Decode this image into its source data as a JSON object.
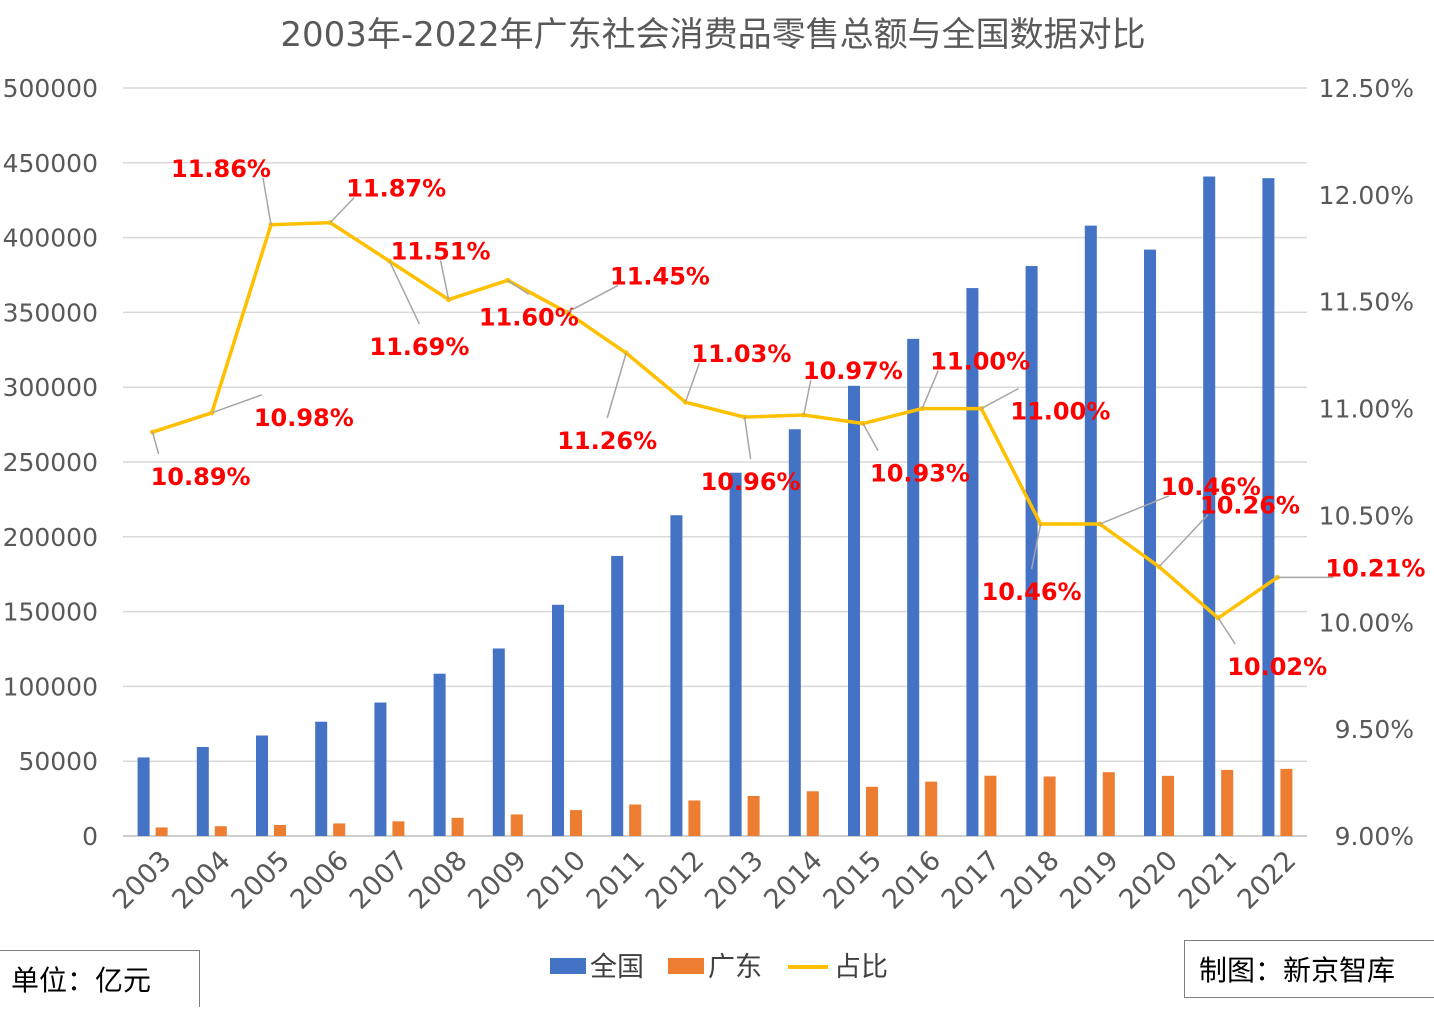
{
  "chart_data": {
    "type": "bar",
    "title": "2003年-2022年广东社会消费品零售总额与全国数据对比",
    "categories": [
      "2003",
      "2004",
      "2005",
      "2006",
      "2007",
      "2008",
      "2009",
      "2010",
      "2011",
      "2012",
      "2013",
      "2014",
      "2015",
      "2016",
      "2017",
      "2018",
      "2019",
      "2020",
      "2021",
      "2022"
    ],
    "ylim": [
      0,
      500000
    ],
    "y2lim": [
      0.09,
      0.125
    ],
    "y_ticks": [
      "0",
      "50000",
      "100000",
      "150000",
      "200000",
      "250000",
      "300000",
      "350000",
      "400000",
      "450000",
      "500000"
    ],
    "y2_ticks": [
      "9.00%",
      "9.50%",
      "10.00%",
      "10.50%",
      "11.00%",
      "11.50%",
      "12.00%",
      "12.50%"
    ],
    "grid": true,
    "legend_position": "bottom",
    "series": [
      {
        "name": "全国",
        "type": "bar",
        "axis": "left",
        "color": "#4472C4",
        "values": [
          52516,
          59501,
          67177,
          76410,
          89210,
          108488,
          125343,
          154554,
          187206,
          214433,
          242843,
          271896,
          300931,
          332316,
          366262,
          380987,
          408017,
          391981,
          440823,
          439733
        ]
      },
      {
        "name": "广东",
        "type": "bar",
        "axis": "left",
        "color": "#ED7D31",
        "values": [
          5719,
          6533,
          7376,
          8406,
          9810,
          12140,
          14408,
          17314,
          21051,
          23744,
          26765,
          29887,
          32891,
          36347,
          40288,
          39767,
          42664,
          40208,
          44187,
          44883
        ]
      },
      {
        "name": "占比",
        "type": "line",
        "axis": "right",
        "color": "#FFC000",
        "values": [
          0.1089,
          0.1098,
          0.1186,
          0.1187,
          0.1169,
          0.1151,
          0.116,
          0.1145,
          0.1126,
          0.1103,
          0.1096,
          0.1097,
          0.1093,
          0.11,
          0.11,
          0.1046,
          0.1046,
          0.1026,
          0.1002,
          0.1021
        ],
        "labels": [
          "10.89%",
          "10.98%",
          "11.86%",
          "11.87%",
          "11.69%",
          "11.51%",
          "11.60%",
          "11.45%",
          "11.26%",
          "11.03%",
          "10.96%",
          "10.97%",
          "10.93%",
          "11.00%",
          "11.00%",
          "10.46%",
          "10.46%",
          "10.26%",
          "10.02%",
          "10.21%"
        ]
      }
    ]
  },
  "unit_label": "单位：亿元",
  "credit_label": "制图：新京智库"
}
